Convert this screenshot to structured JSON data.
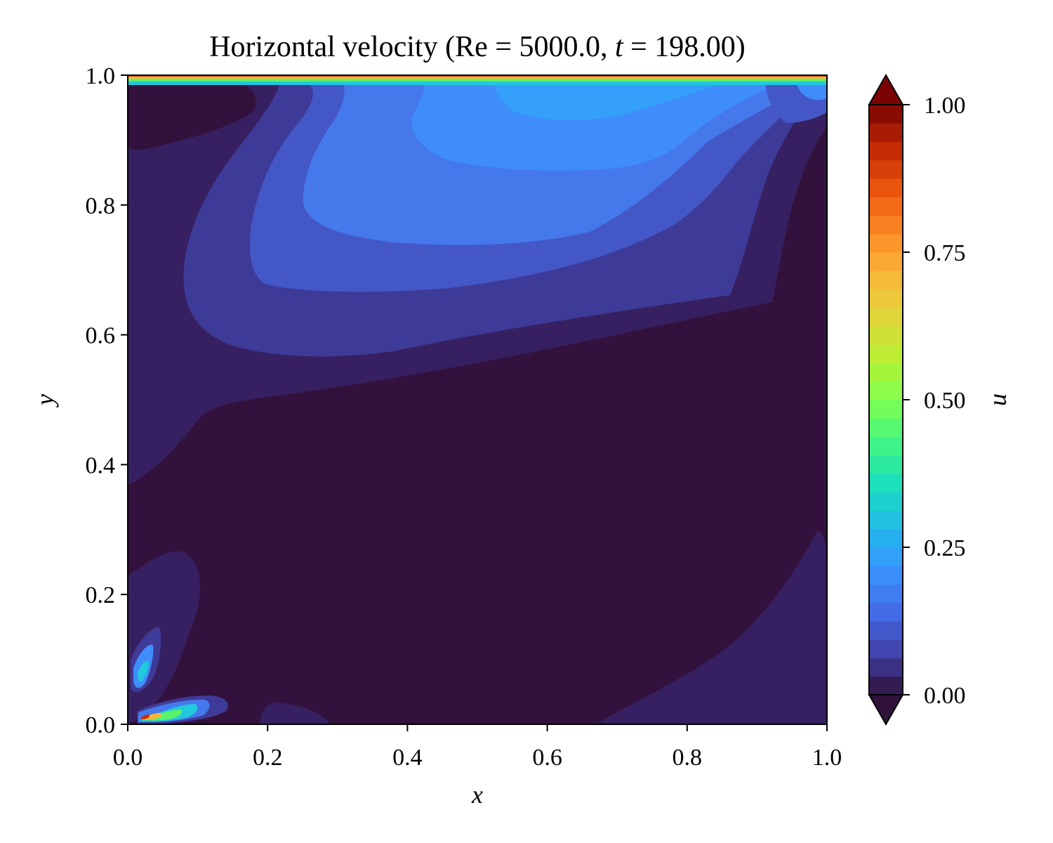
{
  "chart_data": {
    "type": "heatmap",
    "subtype": "filled-contour",
    "title": "Horizontal velocity (Re = 5000.0, t = 198.00)",
    "title_parts": {
      "prefix": "Horizontal velocity (",
      "re_label": "Re",
      "equals": " = ",
      "re_value": "5000.0",
      "sep": ", ",
      "t_label": "t",
      "t_value": "198.00",
      "suffix": ")"
    },
    "xlabel": "x",
    "ylabel": "y",
    "xlim": [
      0.0,
      1.0
    ],
    "ylim": [
      0.0,
      1.0
    ],
    "x_ticks": [
      0.0,
      0.2,
      0.4,
      0.6,
      0.8,
      1.0
    ],
    "y_ticks": [
      0.0,
      0.2,
      0.4,
      0.6,
      0.8,
      1.0
    ],
    "x_tick_labels": [
      "0.0",
      "0.2",
      "0.4",
      "0.6",
      "0.8",
      "1.0"
    ],
    "y_tick_labels": [
      "0.0",
      "0.2",
      "0.4",
      "0.6",
      "0.8",
      "1.0"
    ],
    "grid": false,
    "colorbar": {
      "label": "u",
      "range": [
        0.0,
        1.0
      ],
      "ticks": [
        0.0,
        0.25,
        0.5,
        0.75,
        1.0
      ],
      "tick_labels": [
        "0.00",
        "0.25",
        "0.50",
        "0.75",
        "1.00"
      ],
      "extend": "both",
      "levels": 32,
      "colormap": "turbo",
      "placement": "right"
    },
    "field_regions": [
      {
        "name": "lid-shear-layer",
        "level": "0.30–1.00",
        "location": "y ≈ 0.99–1.00 along top wall"
      },
      {
        "name": "primary-vortex-upper-jet",
        "level": "0.13–0.17",
        "location": "centred near x ≈ 0.5, y ≈ 0.88"
      },
      {
        "name": "near-zero-core",
        "level": "0.00–0.03",
        "location": "lower half of cavity"
      },
      {
        "name": "bottom-left-corner-jet",
        "level": "up to 1.00",
        "location": "x ≈ 0.02–0.12, y ≈ 0.01"
      },
      {
        "name": "left-wall-eddy",
        "level": "≈ 0.17",
        "location": "x ≈ 0.02, y ≈ 0.07–0.12"
      }
    ]
  }
}
